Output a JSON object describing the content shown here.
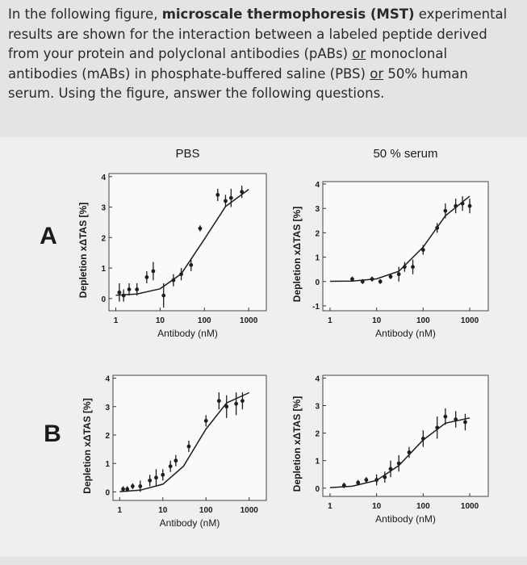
{
  "question": [
    "In the following figure, ",
    "microscale thermophoresis (MST)",
    " experimental results are shown for the interaction between a labeled peptide derived from your protein and polyclonal antibodies (pABs) ",
    "or",
    " monoclonal antibodies (mABs) in phosphate-buffered saline (PBS) ",
    "or",
    " 50% human serum. Using the figure, answer the following questions."
  ],
  "rows": [
    "A",
    "B"
  ],
  "chart_data": [
    {
      "type": "scatter",
      "title": "PBS",
      "x_label": "Antibody (nM)",
      "y_label": "Depletion xΔTAS [%]",
      "xscale": "log",
      "xlim": [
        0.7,
        2500
      ],
      "xticks": [
        1,
        10,
        100,
        1000
      ],
      "ylim": [
        -0.4,
        4.1
      ],
      "yticks": [
        0,
        1,
        2,
        3,
        4
      ],
      "series": [
        {
          "type": "points",
          "color": "#1e1e1e",
          "x": [
            1.2,
            1.5,
            2,
            3,
            5,
            7,
            12,
            20,
            30,
            50,
            80,
            200,
            300,
            400,
            700
          ],
          "values": [
            0.2,
            0.1,
            0.3,
            0.3,
            0.7,
            0.9,
            0.1,
            0.6,
            0.8,
            1.1,
            2.3,
            3.4,
            3.2,
            3.3,
            3.5
          ],
          "errors": [
            0.3,
            0.2,
            0.2,
            0.2,
            0.2,
            0.3,
            0.4,
            0.2,
            0.2,
            0.2,
            0.1,
            0.2,
            0.2,
            0.3,
            0.2
          ]
        },
        {
          "type": "line",
          "color": "#1e1e1e",
          "x": [
            1,
            3,
            10,
            30,
            100,
            300,
            1000
          ],
          "values": [
            0.11,
            0.15,
            0.32,
            0.81,
            1.95,
            3.02,
            3.58
          ]
        }
      ]
    },
    {
      "type": "scatter",
      "title": "50 % serum",
      "x_label": "Antibody (nM)",
      "y_label": "Depletion xΔTAS [%]",
      "xscale": "log",
      "xlim": [
        0.7,
        2500
      ],
      "xticks": [
        1,
        10,
        100,
        1000
      ],
      "ylim": [
        -1.2,
        4.1
      ],
      "yticks": [
        -1,
        0,
        1,
        2,
        3,
        4
      ],
      "series": [
        {
          "type": "points",
          "color": "#1e1e1e",
          "x": [
            3,
            5,
            8,
            12,
            20,
            30,
            40,
            60,
            100,
            200,
            300,
            500,
            700,
            1000
          ],
          "values": [
            0.1,
            0.0,
            0.1,
            0.0,
            0.2,
            0.3,
            0.6,
            0.6,
            1.3,
            2.2,
            2.9,
            3.1,
            3.2,
            3.1
          ],
          "errors": [
            0.1,
            0.1,
            0.1,
            0.1,
            0.1,
            0.3,
            0.2,
            0.3,
            0.2,
            0.2,
            0.3,
            0.3,
            0.3,
            0.3
          ]
        },
        {
          "type": "line",
          "color": "#1e1e1e",
          "x": [
            1,
            3,
            10,
            30,
            100,
            300,
            1000
          ],
          "values": [
            0.01,
            0.02,
            0.11,
            0.42,
            1.41,
            2.7,
            3.5
          ]
        }
      ]
    },
    {
      "type": "scatter",
      "x_label": "Antibody (nM)",
      "y_label": "Depletion xΔTAS [%]",
      "xscale": "log",
      "xlim": [
        0.7,
        2500
      ],
      "xticks": [
        1,
        10,
        100,
        1000
      ],
      "ylim": [
        -0.3,
        4.1
      ],
      "yticks": [
        0,
        1,
        2,
        3,
        4
      ],
      "series": [
        {
          "type": "points",
          "color": "#1e1e1e",
          "x": [
            1.2,
            1.5,
            2,
            3,
            5,
            7,
            10,
            15,
            20,
            40,
            100,
            200,
            300,
            500,
            700
          ],
          "values": [
            0.1,
            0.1,
            0.2,
            0.2,
            0.4,
            0.5,
            0.6,
            0.9,
            1.1,
            1.6,
            2.5,
            3.2,
            3.0,
            3.1,
            3.2
          ],
          "errors": [
            0.1,
            0.1,
            0.1,
            0.2,
            0.2,
            0.3,
            0.2,
            0.2,
            0.2,
            0.2,
            0.2,
            0.3,
            0.4,
            0.4,
            0.3
          ]
        },
        {
          "type": "line",
          "color": "#1e1e1e",
          "x": [
            1,
            3,
            10,
            30,
            100,
            300,
            1000
          ],
          "values": [
            0.01,
            0.06,
            0.27,
            0.9,
            2.21,
            3.13,
            3.49
          ]
        }
      ]
    },
    {
      "type": "scatter",
      "x_label": "Antibody (nM)",
      "y_label": "Depletion xΔTAS [%]",
      "xscale": "log",
      "xlim": [
        0.7,
        2500
      ],
      "xticks": [
        1,
        10,
        100,
        1000
      ],
      "ylim": [
        -0.3,
        4.1
      ],
      "yticks": [
        0,
        1,
        2,
        3,
        4
      ],
      "series": [
        {
          "type": "points",
          "color": "#1e1e1e",
          "x": [
            2,
            4,
            6,
            10,
            15,
            20,
            30,
            50,
            100,
            200,
            300,
            500,
            800
          ],
          "values": [
            0.1,
            0.2,
            0.3,
            0.3,
            0.4,
            0.7,
            0.9,
            1.3,
            1.8,
            2.2,
            2.6,
            2.5,
            2.4
          ],
          "errors": [
            0.1,
            0.1,
            0.1,
            0.2,
            0.2,
            0.3,
            0.3,
            0.2,
            0.3,
            0.4,
            0.3,
            0.3,
            0.3
          ]
        },
        {
          "type": "line",
          "color": "#1e1e1e",
          "x": [
            1,
            3,
            10,
            30,
            100,
            300,
            1000
          ],
          "values": [
            0.02,
            0.07,
            0.28,
            0.82,
            1.75,
            2.36,
            2.55
          ]
        }
      ]
    }
  ]
}
